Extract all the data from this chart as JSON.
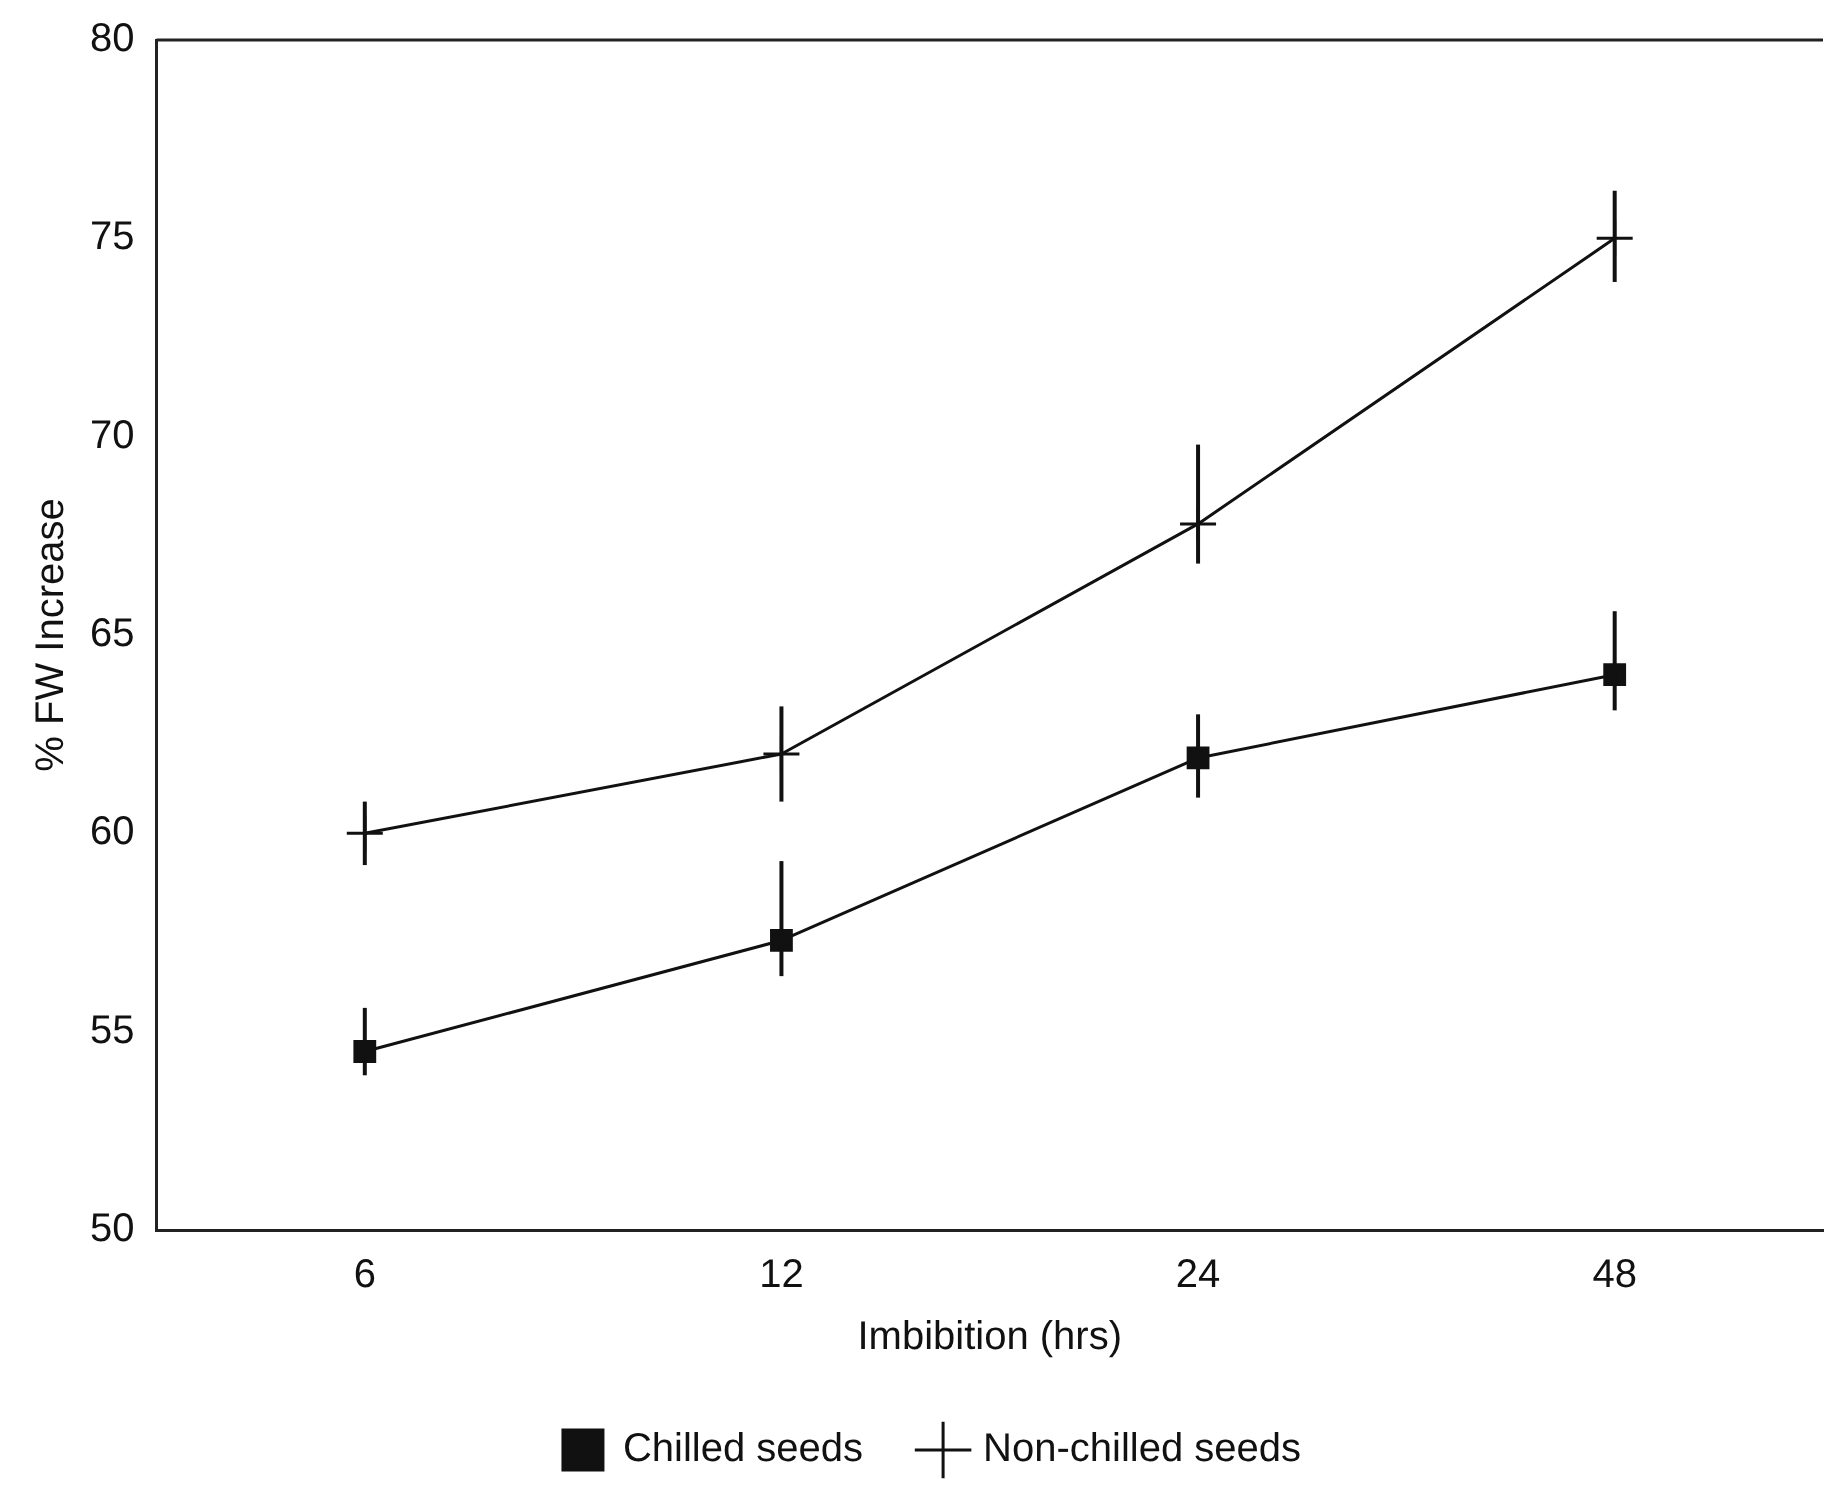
{
  "chart_data": {
    "type": "line",
    "xlabel": "Imbibition (hrs)",
    "ylabel": "% FW Increase",
    "categories": [
      "6",
      "12",
      "24",
      "48"
    ],
    "series": [
      {
        "name": "Chilled seeds",
        "color": "#111111",
        "marker": "square",
        "values": [
          54.5,
          57.3,
          61.9,
          64.0
        ],
        "errors": [
          [
            53.9,
            55.6
          ],
          [
            56.4,
            59.3
          ],
          [
            60.9,
            63.0
          ],
          [
            63.1,
            65.6
          ]
        ]
      },
      {
        "name": "Non-chilled seeds",
        "color": "#111111",
        "marker": "cross",
        "values": [
          60.0,
          62.0,
          67.8,
          75.0
        ],
        "errors": [
          [
            59.2,
            60.8
          ],
          [
            60.8,
            63.2
          ],
          [
            66.8,
            69.8
          ],
          [
            73.9,
            76.2
          ]
        ]
      }
    ],
    "ylim": [
      50,
      80
    ],
    "yticks": [
      50,
      55,
      60,
      65,
      70,
      75,
      80
    ],
    "grid": false,
    "legend": "bottom",
    "line_style": "solid"
  }
}
